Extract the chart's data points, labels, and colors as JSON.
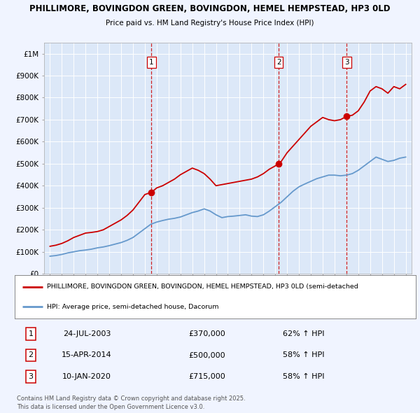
{
  "title1": "PHILLIMORE, BOVINGDON GREEN, BOVINGDON, HEMEL HEMPSTEAD, HP3 0LD",
  "title2": "Price paid vs. HM Land Registry's House Price Index (HPI)",
  "bg_color": "#f0f4ff",
  "plot_bg_color": "#dce8f8",
  "grid_color": "#ffffff",
  "red_line_color": "#cc0000",
  "blue_line_color": "#6699cc",
  "sale_marker_color": "#cc0000",
  "vline_color": "#cc0000",
  "ylim": [
    0,
    1050000
  ],
  "yticks": [
    0,
    100000,
    200000,
    300000,
    400000,
    500000,
    600000,
    700000,
    800000,
    900000,
    1000000
  ],
  "ytick_labels": [
    "£0",
    "£100K",
    "£200K",
    "£300K",
    "£400K",
    "£500K",
    "£600K",
    "£700K",
    "£800K",
    "£900K",
    "£1M"
  ],
  "xlim_start": 1994.5,
  "xlim_end": 2025.5,
  "sale_dates": [
    2003.56,
    2014.29,
    2020.03
  ],
  "sale_prices": [
    370000,
    500000,
    715000
  ],
  "sale_labels": [
    "1",
    "2",
    "3"
  ],
  "sale_date_strs": [
    "24-JUL-2003",
    "15-APR-2014",
    "10-JAN-2020"
  ],
  "sale_price_strs": [
    "£370,000",
    "£500,000",
    "£715,000"
  ],
  "sale_hpi_strs": [
    "62% ↑ HPI",
    "58% ↑ HPI",
    "58% ↑ HPI"
  ],
  "legend_label_red": "PHILLIMORE, BOVINGDON GREEN, BOVINGDON, HEMEL HEMPSTEAD, HP3 0LD (semi-detached",
  "legend_label_blue": "HPI: Average price, semi-detached house, Dacorum",
  "footer_text": "Contains HM Land Registry data © Crown copyright and database right 2025.\nThis data is licensed under the Open Government Licence v3.0.",
  "red_x": [
    1995.0,
    1995.5,
    1996.0,
    1996.5,
    1997.0,
    1997.5,
    1998.0,
    1998.5,
    1999.0,
    1999.5,
    2000.0,
    2000.5,
    2001.0,
    2001.5,
    2002.0,
    2002.5,
    2003.0,
    2003.56,
    2004.0,
    2004.5,
    2005.0,
    2005.5,
    2006.0,
    2006.5,
    2007.0,
    2007.5,
    2008.0,
    2008.5,
    2009.0,
    2009.5,
    2010.0,
    2010.5,
    2011.0,
    2011.5,
    2012.0,
    2012.5,
    2013.0,
    2013.5,
    2014.0,
    2014.29,
    2014.5,
    2015.0,
    2015.5,
    2016.0,
    2016.5,
    2017.0,
    2017.5,
    2018.0,
    2018.5,
    2019.0,
    2019.5,
    2020.03,
    2020.5,
    2021.0,
    2021.5,
    2022.0,
    2022.5,
    2023.0,
    2023.5,
    2024.0,
    2024.5,
    2025.0
  ],
  "red_y": [
    125000,
    130000,
    138000,
    150000,
    165000,
    175000,
    185000,
    188000,
    192000,
    200000,
    215000,
    230000,
    245000,
    265000,
    290000,
    325000,
    360000,
    370000,
    390000,
    400000,
    415000,
    430000,
    450000,
    465000,
    480000,
    470000,
    455000,
    430000,
    400000,
    405000,
    410000,
    415000,
    420000,
    425000,
    430000,
    440000,
    455000,
    475000,
    490000,
    500000,
    510000,
    550000,
    580000,
    610000,
    640000,
    670000,
    690000,
    710000,
    700000,
    695000,
    700000,
    715000,
    720000,
    740000,
    780000,
    830000,
    850000,
    840000,
    820000,
    850000,
    840000,
    860000
  ],
  "blue_x": [
    1995.0,
    1995.5,
    1996.0,
    1996.5,
    1997.0,
    1997.5,
    1998.0,
    1998.5,
    1999.0,
    1999.5,
    2000.0,
    2000.5,
    2001.0,
    2001.5,
    2002.0,
    2002.5,
    2003.0,
    2003.5,
    2004.0,
    2004.5,
    2005.0,
    2005.5,
    2006.0,
    2006.5,
    2007.0,
    2007.5,
    2008.0,
    2008.5,
    2009.0,
    2009.5,
    2010.0,
    2010.5,
    2011.0,
    2011.5,
    2012.0,
    2012.5,
    2013.0,
    2013.5,
    2014.0,
    2014.5,
    2015.0,
    2015.5,
    2016.0,
    2016.5,
    2017.0,
    2017.5,
    2018.0,
    2018.5,
    2019.0,
    2019.5,
    2020.0,
    2020.5,
    2021.0,
    2021.5,
    2022.0,
    2022.5,
    2023.0,
    2023.5,
    2024.0,
    2024.5,
    2025.0
  ],
  "blue_y": [
    80000,
    83000,
    88000,
    95000,
    100000,
    105000,
    108000,
    112000,
    118000,
    122000,
    128000,
    135000,
    142000,
    152000,
    165000,
    185000,
    205000,
    225000,
    235000,
    242000,
    248000,
    252000,
    258000,
    268000,
    278000,
    285000,
    295000,
    285000,
    268000,
    255000,
    260000,
    262000,
    265000,
    268000,
    262000,
    260000,
    268000,
    285000,
    305000,
    325000,
    350000,
    375000,
    395000,
    408000,
    420000,
    432000,
    440000,
    448000,
    448000,
    445000,
    448000,
    455000,
    470000,
    490000,
    510000,
    530000,
    520000,
    510000,
    515000,
    525000,
    530000
  ]
}
